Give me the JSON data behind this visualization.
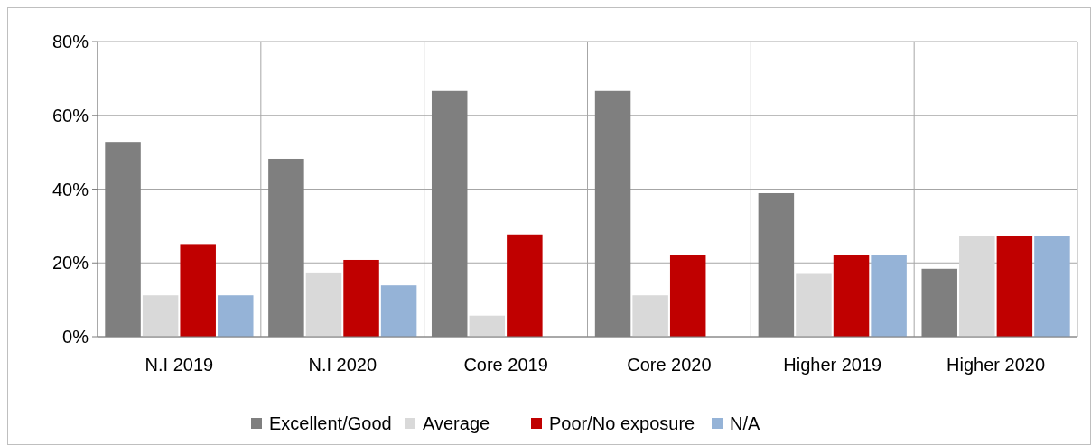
{
  "chart_data": {
    "type": "bar",
    "categories": [
      "N.I 2019",
      "N.I 2020",
      "Core 2019",
      "Core 2020",
      "Higher 2019",
      "Higher 2020"
    ],
    "series": [
      {
        "name": "Excellent/Good",
        "color": "#7f7f7f",
        "values": [
          52.8,
          48.2,
          66.6,
          66.6,
          38.9,
          18.4
        ]
      },
      {
        "name": "Average",
        "color": "#d9d9d9",
        "values": [
          11.2,
          17.4,
          5.7,
          11.2,
          17,
          27.2
        ]
      },
      {
        "name": "Poor/No exposure",
        "color": "#c00000",
        "values": [
          25.1,
          20.8,
          27.7,
          22.2,
          22.2,
          27.2
        ]
      },
      {
        "name": "N/A",
        "color": "#95b3d7",
        "values": [
          11.2,
          13.9,
          0,
          0,
          22.2,
          27.2
        ]
      }
    ],
    "ylim": [
      0,
      80
    ],
    "yticks": [
      {
        "value": 0,
        "label": "0%"
      },
      {
        "value": 20,
        "label": "20%"
      },
      {
        "value": 40,
        "label": "40%"
      },
      {
        "value": 60,
        "label": "60%"
      },
      {
        "value": 80,
        "label": "80%"
      }
    ],
    "grid": true,
    "legend": "bottom"
  }
}
